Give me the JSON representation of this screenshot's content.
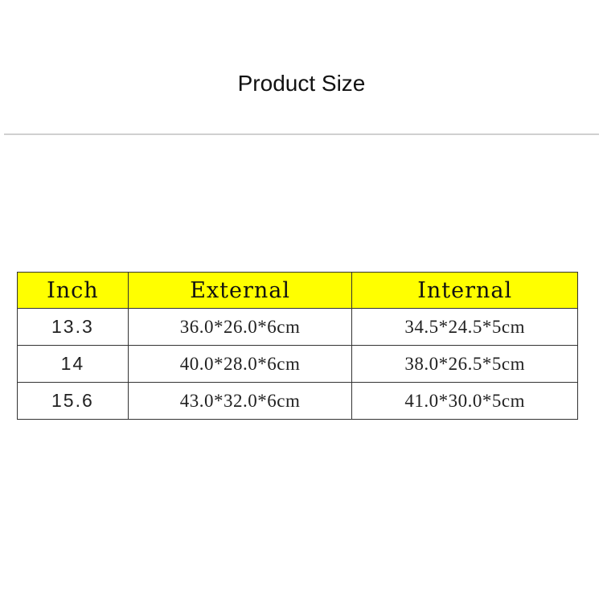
{
  "title": "Product Size",
  "table": {
    "headers": [
      "Inch",
      "External",
      "Internal"
    ],
    "rows": [
      [
        "13.3",
        "36.0*26.0*6cm",
        "34.5*24.5*5cm"
      ],
      [
        "14",
        "40.0*28.0*6cm",
        "38.0*26.5*5cm"
      ],
      [
        "15.6",
        "43.0*32.0*6cm",
        "41.0*30.0*5cm"
      ]
    ],
    "header_color": "#ffff00"
  }
}
